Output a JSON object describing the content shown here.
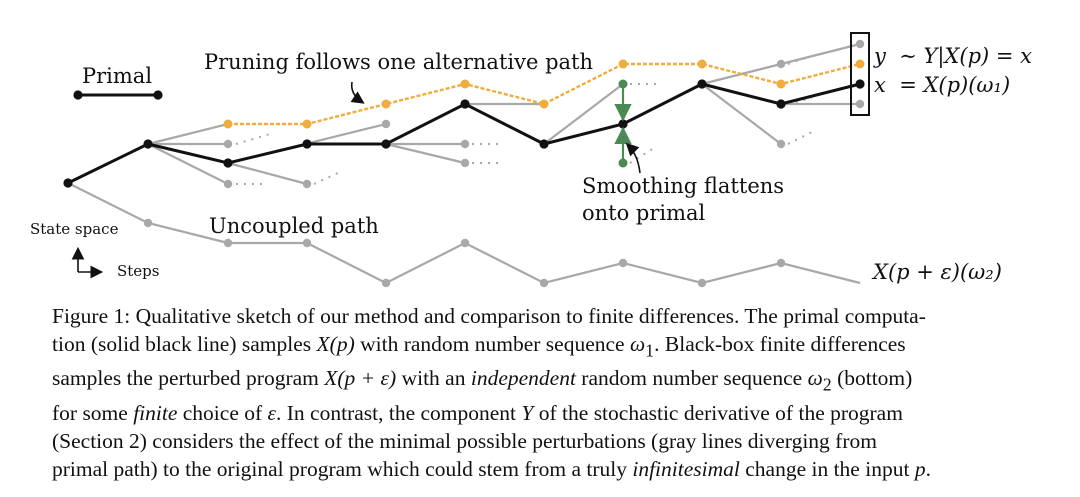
{
  "figure": {
    "legend_primal": "Primal",
    "label_pruning": "Pruning follows one alternative path",
    "label_smoothing_1": "Smoothing flattens",
    "label_smoothing_2": "onto primal",
    "label_uncoupled": "Uncoupled path",
    "axis_state": "State space",
    "axis_steps": "Steps",
    "eq_y": "y  ∼ Y|X(p) = x",
    "eq_x": "x  = X(p)(ω₁)",
    "eq_perturbed": "X(p + ε)(ω₂)",
    "colors": {
      "primal": "#111111",
      "alternative": "#a8a8a8",
      "pruning": "#f0ac3c",
      "smoothing": "#4c8a55",
      "uncoupled": "#a8a8a8"
    }
  },
  "caption": {
    "line1_a": "Figure 1: Qualitative sketch of our method and comparison to finite differences. The primal computa-",
    "line2_a": "tion (solid black line) samples ",
    "line2_m1": "X(p)",
    "line2_b": " with random number sequence ",
    "line2_m2": "ω",
    "line2_sub": "1",
    "line2_c": ". Black-box finite differences",
    "line3_a": "samples the perturbed program ",
    "line3_m1": "X(p + ε)",
    "line3_b": " with an ",
    "line3_em": "independent",
    "line3_c": " random number sequence ",
    "line3_m2": "ω",
    "line3_sub": "2",
    "line3_d": " (bottom)",
    "line4_a": "for some ",
    "line4_em": "finite",
    "line4_b": " choice of ",
    "line4_m1": "ε",
    "line4_c": ". In contrast, the component ",
    "line4_m2": "Y",
    "line4_d": " of the stochastic derivative of the program",
    "line5": "(Section 2) considers the effect of the minimal possible perturbations (gray lines diverging from",
    "line6_a": "primal path) to the original program which could stem from a truly ",
    "line6_em": "infinitesimal",
    "line6_b": " change in the input ",
    "line6_m1": "p",
    "line6_c": "."
  }
}
